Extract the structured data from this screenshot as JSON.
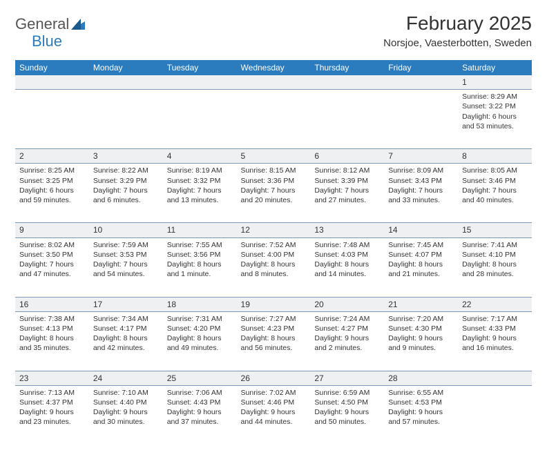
{
  "brand": {
    "part1": "General",
    "part2": "Blue"
  },
  "title": "February 2025",
  "location": "Norsjoe, Vaesterbotten, Sweden",
  "colors": {
    "header_bg": "#2b7bbf",
    "header_text": "#ffffff",
    "daynum_bg": "#eef0f1",
    "border": "#7a98b5",
    "text": "#333333",
    "logo_accent": "#2b7bbf"
  },
  "days_of_week": [
    "Sunday",
    "Monday",
    "Tuesday",
    "Wednesday",
    "Thursday",
    "Friday",
    "Saturday"
  ],
  "weeks": [
    {
      "nums": [
        "",
        "",
        "",
        "",
        "",
        "",
        "1"
      ],
      "cells": [
        null,
        null,
        null,
        null,
        null,
        null,
        {
          "sunrise": "Sunrise: 8:29 AM",
          "sunset": "Sunset: 3:22 PM",
          "day1": "Daylight: 6 hours",
          "day2": "and 53 minutes."
        }
      ]
    },
    {
      "nums": [
        "2",
        "3",
        "4",
        "5",
        "6",
        "7",
        "8"
      ],
      "cells": [
        {
          "sunrise": "Sunrise: 8:25 AM",
          "sunset": "Sunset: 3:25 PM",
          "day1": "Daylight: 6 hours",
          "day2": "and 59 minutes."
        },
        {
          "sunrise": "Sunrise: 8:22 AM",
          "sunset": "Sunset: 3:29 PM",
          "day1": "Daylight: 7 hours",
          "day2": "and 6 minutes."
        },
        {
          "sunrise": "Sunrise: 8:19 AM",
          "sunset": "Sunset: 3:32 PM",
          "day1": "Daylight: 7 hours",
          "day2": "and 13 minutes."
        },
        {
          "sunrise": "Sunrise: 8:15 AM",
          "sunset": "Sunset: 3:36 PM",
          "day1": "Daylight: 7 hours",
          "day2": "and 20 minutes."
        },
        {
          "sunrise": "Sunrise: 8:12 AM",
          "sunset": "Sunset: 3:39 PM",
          "day1": "Daylight: 7 hours",
          "day2": "and 27 minutes."
        },
        {
          "sunrise": "Sunrise: 8:09 AM",
          "sunset": "Sunset: 3:43 PM",
          "day1": "Daylight: 7 hours",
          "day2": "and 33 minutes."
        },
        {
          "sunrise": "Sunrise: 8:05 AM",
          "sunset": "Sunset: 3:46 PM",
          "day1": "Daylight: 7 hours",
          "day2": "and 40 minutes."
        }
      ]
    },
    {
      "nums": [
        "9",
        "10",
        "11",
        "12",
        "13",
        "14",
        "15"
      ],
      "cells": [
        {
          "sunrise": "Sunrise: 8:02 AM",
          "sunset": "Sunset: 3:50 PM",
          "day1": "Daylight: 7 hours",
          "day2": "and 47 minutes."
        },
        {
          "sunrise": "Sunrise: 7:59 AM",
          "sunset": "Sunset: 3:53 PM",
          "day1": "Daylight: 7 hours",
          "day2": "and 54 minutes."
        },
        {
          "sunrise": "Sunrise: 7:55 AM",
          "sunset": "Sunset: 3:56 PM",
          "day1": "Daylight: 8 hours",
          "day2": "and 1 minute."
        },
        {
          "sunrise": "Sunrise: 7:52 AM",
          "sunset": "Sunset: 4:00 PM",
          "day1": "Daylight: 8 hours",
          "day2": "and 8 minutes."
        },
        {
          "sunrise": "Sunrise: 7:48 AM",
          "sunset": "Sunset: 4:03 PM",
          "day1": "Daylight: 8 hours",
          "day2": "and 14 minutes."
        },
        {
          "sunrise": "Sunrise: 7:45 AM",
          "sunset": "Sunset: 4:07 PM",
          "day1": "Daylight: 8 hours",
          "day2": "and 21 minutes."
        },
        {
          "sunrise": "Sunrise: 7:41 AM",
          "sunset": "Sunset: 4:10 PM",
          "day1": "Daylight: 8 hours",
          "day2": "and 28 minutes."
        }
      ]
    },
    {
      "nums": [
        "16",
        "17",
        "18",
        "19",
        "20",
        "21",
        "22"
      ],
      "cells": [
        {
          "sunrise": "Sunrise: 7:38 AM",
          "sunset": "Sunset: 4:13 PM",
          "day1": "Daylight: 8 hours",
          "day2": "and 35 minutes."
        },
        {
          "sunrise": "Sunrise: 7:34 AM",
          "sunset": "Sunset: 4:17 PM",
          "day1": "Daylight: 8 hours",
          "day2": "and 42 minutes."
        },
        {
          "sunrise": "Sunrise: 7:31 AM",
          "sunset": "Sunset: 4:20 PM",
          "day1": "Daylight: 8 hours",
          "day2": "and 49 minutes."
        },
        {
          "sunrise": "Sunrise: 7:27 AM",
          "sunset": "Sunset: 4:23 PM",
          "day1": "Daylight: 8 hours",
          "day2": "and 56 minutes."
        },
        {
          "sunrise": "Sunrise: 7:24 AM",
          "sunset": "Sunset: 4:27 PM",
          "day1": "Daylight: 9 hours",
          "day2": "and 2 minutes."
        },
        {
          "sunrise": "Sunrise: 7:20 AM",
          "sunset": "Sunset: 4:30 PM",
          "day1": "Daylight: 9 hours",
          "day2": "and 9 minutes."
        },
        {
          "sunrise": "Sunrise: 7:17 AM",
          "sunset": "Sunset: 4:33 PM",
          "day1": "Daylight: 9 hours",
          "day2": "and 16 minutes."
        }
      ]
    },
    {
      "nums": [
        "23",
        "24",
        "25",
        "26",
        "27",
        "28",
        ""
      ],
      "cells": [
        {
          "sunrise": "Sunrise: 7:13 AM",
          "sunset": "Sunset: 4:37 PM",
          "day1": "Daylight: 9 hours",
          "day2": "and 23 minutes."
        },
        {
          "sunrise": "Sunrise: 7:10 AM",
          "sunset": "Sunset: 4:40 PM",
          "day1": "Daylight: 9 hours",
          "day2": "and 30 minutes."
        },
        {
          "sunrise": "Sunrise: 7:06 AM",
          "sunset": "Sunset: 4:43 PM",
          "day1": "Daylight: 9 hours",
          "day2": "and 37 minutes."
        },
        {
          "sunrise": "Sunrise: 7:02 AM",
          "sunset": "Sunset: 4:46 PM",
          "day1": "Daylight: 9 hours",
          "day2": "and 44 minutes."
        },
        {
          "sunrise": "Sunrise: 6:59 AM",
          "sunset": "Sunset: 4:50 PM",
          "day1": "Daylight: 9 hours",
          "day2": "and 50 minutes."
        },
        {
          "sunrise": "Sunrise: 6:55 AM",
          "sunset": "Sunset: 4:53 PM",
          "day1": "Daylight: 9 hours",
          "day2": "and 57 minutes."
        },
        null
      ]
    }
  ]
}
